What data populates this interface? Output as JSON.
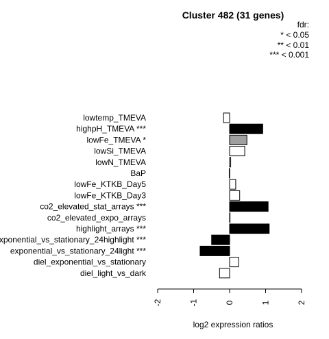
{
  "chart_data": {
    "type": "bar",
    "orientation": "horizontal",
    "title": "Cluster 482 (31 genes)",
    "xlabel": "log2 expression ratios",
    "ylabel": "",
    "xlim": [
      -2,
      2
    ],
    "xticks": [
      "-2",
      "-1",
      "0",
      "1",
      "2"
    ],
    "grid": false,
    "legend": {
      "placement": "top-right",
      "title": "fdr:",
      "entries": [
        "* < 0.05",
        "** < 0.01",
        "*** < 0.001"
      ]
    },
    "categories": [
      "lowtemp_TMEVA",
      "highpH_TMEVA ***",
      "lowFe_TMEVA *",
      "lowSi_TMEVA",
      "lowN_TMEVA",
      "BaP",
      "lowFe_KTKB_Day5",
      "lowFe_KTKB_Day3",
      "co2_elevated_stat_arrays ***",
      "co2_elevated_expo_arrays",
      "highlight_arrays ***",
      "exponential_vs_stationary_24highlight ***",
      "exponential_vs_stationary_24light ***",
      "diel_exponential_vs_stationary",
      "diel_light_vs_dark"
    ],
    "values": [
      -0.17,
      0.92,
      0.48,
      0.42,
      0.03,
      -0.01,
      0.17,
      0.28,
      1.07,
      0.0,
      1.1,
      -0.5,
      -0.82,
      0.25,
      -0.28
    ],
    "significance_colors": [
      "white",
      "black",
      "gray",
      "white",
      "white",
      "white",
      "white",
      "white",
      "black",
      "white",
      "black",
      "black",
      "black",
      "white",
      "white"
    ],
    "colors": {
      "white": "#ffffff",
      "gray": "#a0a0a0",
      "black": "#000000",
      "stroke": "#000000"
    }
  }
}
